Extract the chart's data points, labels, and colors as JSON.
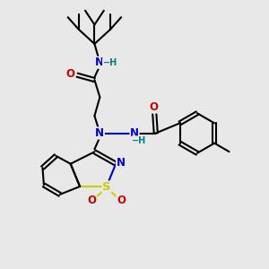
{
  "bg_color": "#e8e8e8",
  "C": "#000000",
  "N": "#0000cc",
  "O": "#cc0000",
  "S": "#cccc00",
  "H_color": "#008080",
  "bond_color": "#000000",
  "bond_width": 1.5,
  "dbo": 0.07,
  "fs": 8.5
}
